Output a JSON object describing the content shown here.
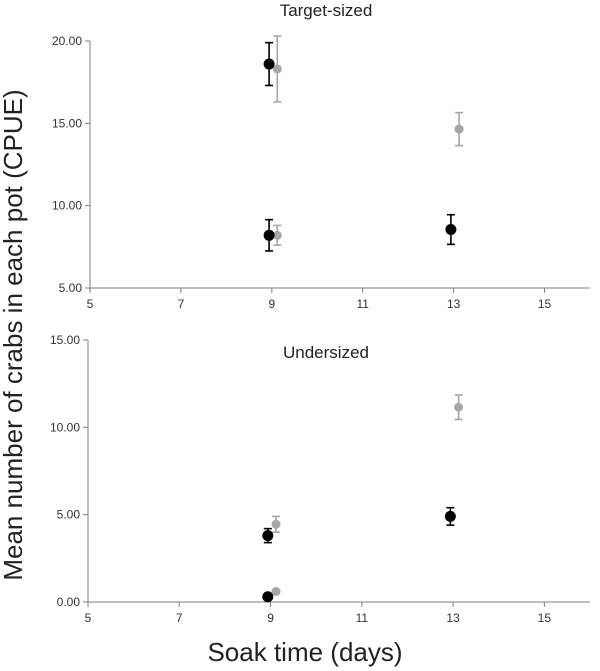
{
  "figure": {
    "ylabel": "Mean number of crabs in each pot (CPUE)",
    "xlabel": "Soak time (days)"
  },
  "chart_data": [
    {
      "type": "scatter",
      "title": "Target-sized",
      "xlim": [
        5,
        16
      ],
      "ylim": [
        5,
        20
      ],
      "x_ticks": [
        "5",
        "7",
        "9",
        "11",
        "13",
        "15"
      ],
      "y_ticks": [
        "5.00",
        "10.00",
        "15.00",
        "20.00"
      ],
      "grid": false,
      "series": [
        {
          "color": "#000000",
          "points": [
            {
              "x": 9,
              "y": 18.6,
              "err": 1.3
            },
            {
              "x": 9,
              "y": 8.2,
              "err": 0.95
            },
            {
              "x": 13,
              "y": 8.55,
              "err": 0.9
            }
          ]
        },
        {
          "color": "#a6a6a6",
          "points": [
            {
              "x": 9,
              "y": 18.3,
              "err": 2.0
            },
            {
              "x": 9,
              "y": 8.2,
              "err": 0.6
            },
            {
              "x": 13,
              "y": 14.65,
              "err": 1.0
            }
          ]
        }
      ]
    },
    {
      "type": "scatter",
      "title": "Undersized",
      "xlim": [
        5,
        16
      ],
      "ylim": [
        0,
        15
      ],
      "x_ticks": [
        "5",
        "7",
        "9",
        "11",
        "13",
        "15"
      ],
      "y_ticks": [
        "0.00",
        "5.00",
        "10.00",
        "15.00"
      ],
      "grid": false,
      "series": [
        {
          "color": "#000000",
          "points": [
            {
              "x": 9,
              "y": 3.8,
              "err": 0.4
            },
            {
              "x": 9,
              "y": 0.3,
              "err": 0.0
            },
            {
              "x": 13,
              "y": 4.9,
              "err": 0.5
            }
          ]
        },
        {
          "color": "#a6a6a6",
          "points": [
            {
              "x": 9,
              "y": 4.45,
              "err": 0.45
            },
            {
              "x": 9,
              "y": 0.6,
              "err": 0.0
            },
            {
              "x": 13,
              "y": 11.15,
              "err": 0.7
            }
          ]
        }
      ]
    }
  ]
}
